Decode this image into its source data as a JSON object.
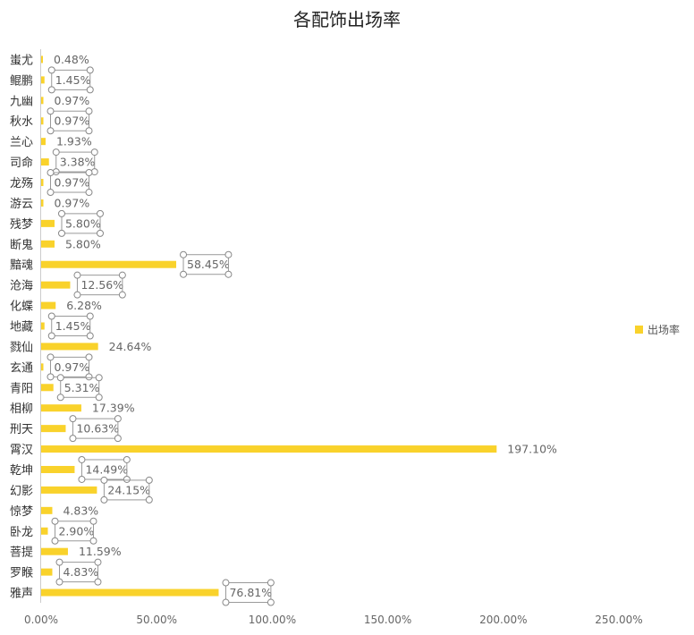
{
  "chart_data": {
    "type": "bar",
    "orientation": "horizontal",
    "title": "各配饰出场率",
    "categories": [
      "蚩尤",
      "鲲鹏",
      "九幽",
      "秋水",
      "兰心",
      "司命",
      "龙殇",
      "游云",
      "残梦",
      "断鬼",
      "黯魂",
      "沧海",
      "化蝶",
      "地藏",
      "戮仙",
      "玄通",
      "青阳",
      "相柳",
      "刑天",
      "霄汉",
      "乾坤",
      "幻影",
      "惊梦",
      "卧龙",
      "菩提",
      "罗睺",
      "雅声"
    ],
    "series": [
      {
        "name": "出场率",
        "values": [
          0.48,
          1.45,
          0.97,
          0.97,
          1.93,
          3.38,
          0.97,
          0.97,
          5.8,
          5.8,
          58.45,
          12.56,
          6.28,
          1.45,
          24.64,
          0.97,
          5.31,
          17.39,
          10.63,
          197.1,
          14.49,
          24.15,
          4.83,
          2.9,
          11.59,
          4.83,
          76.81
        ],
        "labels": [
          "0.48%",
          "1.45%",
          "0.97%",
          "0.97%",
          "1.93%",
          "3.38%",
          "0.97%",
          "0.97%",
          "5.80%",
          "5.80%",
          "58.45%",
          "12.56%",
          "6.28%",
          "1.45%",
          "24.64%",
          "0.97%",
          "5.31%",
          "17.39%",
          "10.63%",
          "197.10%",
          "14.49%",
          "24.15%",
          "4.83%",
          "2.90%",
          "11.59%",
          "4.83%",
          "76.81%"
        ],
        "selected_labels": [
          1,
          3,
          5,
          6,
          8,
          10,
          11,
          13,
          15,
          16,
          18,
          20,
          21,
          23,
          25,
          26
        ]
      }
    ],
    "xlim": [
      0,
      250
    ],
    "xticks": [
      "0.00%",
      "50.00%",
      "100.00%",
      "150.00%",
      "200.00%",
      "250.00%"
    ],
    "legend": "right",
    "grid": false,
    "colors": {
      "bar": "#F9D22B",
      "axis": "#cccccc"
    }
  }
}
